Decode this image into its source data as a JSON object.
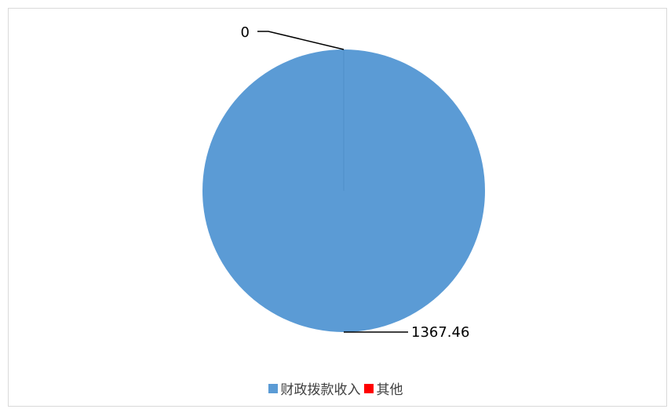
{
  "chart_data": {
    "type": "pie",
    "categories": [
      "财政拨款收入",
      "其他"
    ],
    "values": [
      1367.46,
      0
    ],
    "data_labels": [
      "1367.46",
      "0"
    ],
    "colors": [
      "#5b9bd5",
      "#ff0000"
    ],
    "legend_position": "bottom"
  }
}
